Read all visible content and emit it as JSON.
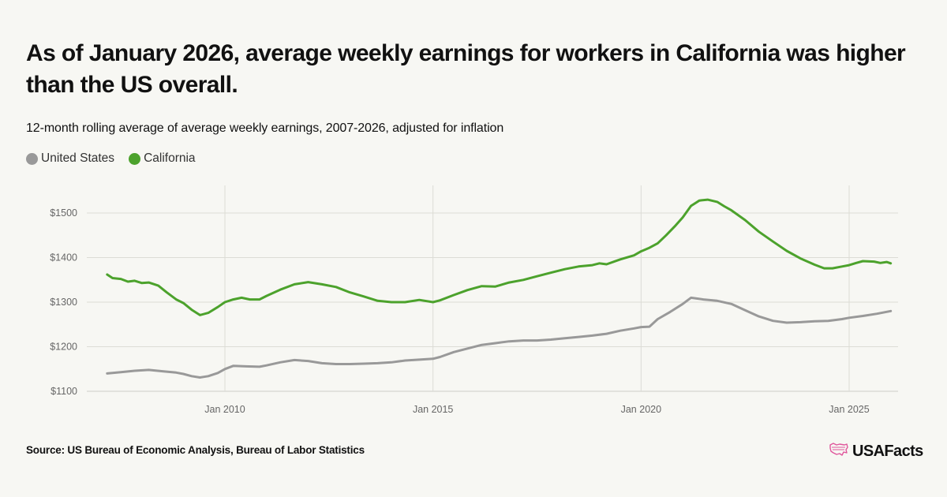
{
  "header": {
    "title": "As of January 2026, average weekly earnings for workers in California was higher than the US overall.",
    "subtitle": "12-month rolling average of average weekly earnings, 2007-2026, adjusted for inflation"
  },
  "footer": {
    "source": "Source: US Bureau of Economic Analysis, Bureau of Labor Statistics",
    "brand": "USAFacts",
    "brand_icon": "us-map-icon",
    "brand_color": "#e0559b"
  },
  "chart_data": {
    "type": "line",
    "title": "12-month rolling average of average weekly earnings, 2007-2026, adjusted for inflation",
    "xlabel": "",
    "ylabel": "",
    "xlim": [
      2006.6,
      2026.3
    ],
    "ylim": [
      1100,
      1560
    ],
    "grid": true,
    "legend_position": "top-left",
    "y_ticks": [
      {
        "value": 1100,
        "label": "$1100"
      },
      {
        "value": 1200,
        "label": "$1200"
      },
      {
        "value": 1300,
        "label": "$1300"
      },
      {
        "value": 1400,
        "label": "$1400"
      },
      {
        "value": 1500,
        "label": "$1500"
      }
    ],
    "x_ticks": [
      {
        "value": 2010,
        "label": "Jan 2010"
      },
      {
        "value": 2015,
        "label": "Jan 2015"
      },
      {
        "value": 2020,
        "label": "Jan 2020"
      },
      {
        "value": 2025,
        "label": "Jan 2025"
      }
    ],
    "series": [
      {
        "name": "United States",
        "color": "#999999",
        "points": [
          [
            2007.17,
            1140
          ],
          [
            2007.5,
            1143
          ],
          [
            2007.83,
            1146
          ],
          [
            2008.17,
            1148
          ],
          [
            2008.5,
            1145
          ],
          [
            2008.83,
            1142
          ],
          [
            2009.0,
            1139
          ],
          [
            2009.2,
            1134
          ],
          [
            2009.4,
            1131
          ],
          [
            2009.6,
            1134
          ],
          [
            2009.83,
            1141
          ],
          [
            2010.0,
            1150
          ],
          [
            2010.2,
            1157
          ],
          [
            2010.5,
            1156
          ],
          [
            2010.83,
            1155
          ],
          [
            2011.0,
            1158
          ],
          [
            2011.33,
            1165
          ],
          [
            2011.67,
            1170
          ],
          [
            2012.0,
            1168
          ],
          [
            2012.33,
            1163
          ],
          [
            2012.67,
            1161
          ],
          [
            2013.0,
            1161
          ],
          [
            2013.33,
            1162
          ],
          [
            2013.67,
            1163
          ],
          [
            2014.0,
            1165
          ],
          [
            2014.33,
            1169
          ],
          [
            2014.67,
            1171
          ],
          [
            2015.0,
            1173
          ],
          [
            2015.17,
            1177
          ],
          [
            2015.5,
            1188
          ],
          [
            2015.83,
            1196
          ],
          [
            2016.17,
            1204
          ],
          [
            2016.5,
            1208
          ],
          [
            2016.83,
            1212
          ],
          [
            2017.17,
            1214
          ],
          [
            2017.5,
            1214
          ],
          [
            2017.83,
            1216
          ],
          [
            2018.17,
            1219
          ],
          [
            2018.5,
            1222
          ],
          [
            2018.83,
            1225
          ],
          [
            2019.17,
            1229
          ],
          [
            2019.5,
            1236
          ],
          [
            2019.83,
            1241
          ],
          [
            2020.0,
            1244
          ],
          [
            2020.2,
            1245
          ],
          [
            2020.4,
            1262
          ],
          [
            2020.7,
            1278
          ],
          [
            2021.0,
            1296
          ],
          [
            2021.2,
            1310
          ],
          [
            2021.5,
            1306
          ],
          [
            2021.83,
            1303
          ],
          [
            2022.17,
            1296
          ],
          [
            2022.5,
            1282
          ],
          [
            2022.83,
            1268
          ],
          [
            2023.17,
            1258
          ],
          [
            2023.5,
            1254
          ],
          [
            2023.83,
            1255
          ],
          [
            2024.17,
            1257
          ],
          [
            2024.5,
            1258
          ],
          [
            2024.83,
            1262
          ],
          [
            2025.0,
            1265
          ],
          [
            2025.33,
            1269
          ],
          [
            2025.67,
            1274
          ],
          [
            2026.0,
            1280
          ]
        ]
      },
      {
        "name": "California",
        "color": "#4ca22c",
        "points": [
          [
            2007.17,
            1362
          ],
          [
            2007.3,
            1354
          ],
          [
            2007.5,
            1352
          ],
          [
            2007.67,
            1346
          ],
          [
            2007.83,
            1348
          ],
          [
            2008.0,
            1343
          ],
          [
            2008.17,
            1344
          ],
          [
            2008.4,
            1337
          ],
          [
            2008.6,
            1322
          ],
          [
            2008.83,
            1306
          ],
          [
            2009.0,
            1298
          ],
          [
            2009.2,
            1283
          ],
          [
            2009.4,
            1271
          ],
          [
            2009.6,
            1276
          ],
          [
            2009.83,
            1289
          ],
          [
            2010.0,
            1300
          ],
          [
            2010.2,
            1306
          ],
          [
            2010.4,
            1310
          ],
          [
            2010.6,
            1306
          ],
          [
            2010.83,
            1306
          ],
          [
            2011.0,
            1314
          ],
          [
            2011.33,
            1328
          ],
          [
            2011.67,
            1340
          ],
          [
            2012.0,
            1345
          ],
          [
            2012.33,
            1340
          ],
          [
            2012.67,
            1334
          ],
          [
            2013.0,
            1322
          ],
          [
            2013.33,
            1313
          ],
          [
            2013.67,
            1303
          ],
          [
            2014.0,
            1300
          ],
          [
            2014.33,
            1300
          ],
          [
            2014.67,
            1305
          ],
          [
            2015.0,
            1300
          ],
          [
            2015.17,
            1304
          ],
          [
            2015.5,
            1316
          ],
          [
            2015.83,
            1327
          ],
          [
            2016.17,
            1336
          ],
          [
            2016.5,
            1335
          ],
          [
            2016.83,
            1344
          ],
          [
            2017.17,
            1350
          ],
          [
            2017.5,
            1358
          ],
          [
            2017.83,
            1366
          ],
          [
            2018.17,
            1374
          ],
          [
            2018.5,
            1380
          ],
          [
            2018.83,
            1383
          ],
          [
            2019.0,
            1387
          ],
          [
            2019.17,
            1385
          ],
          [
            2019.5,
            1396
          ],
          [
            2019.83,
            1405
          ],
          [
            2020.0,
            1414
          ],
          [
            2020.2,
            1422
          ],
          [
            2020.4,
            1432
          ],
          [
            2020.6,
            1450
          ],
          [
            2020.83,
            1472
          ],
          [
            2021.0,
            1490
          ],
          [
            2021.2,
            1516
          ],
          [
            2021.4,
            1528
          ],
          [
            2021.6,
            1530
          ],
          [
            2021.83,
            1525
          ],
          [
            2022.0,
            1515
          ],
          [
            2022.17,
            1506
          ],
          [
            2022.5,
            1484
          ],
          [
            2022.83,
            1458
          ],
          [
            2023.17,
            1436
          ],
          [
            2023.5,
            1415
          ],
          [
            2023.83,
            1398
          ],
          [
            2024.17,
            1384
          ],
          [
            2024.4,
            1376
          ],
          [
            2024.6,
            1376
          ],
          [
            2024.83,
            1380
          ],
          [
            2025.0,
            1383
          ],
          [
            2025.17,
            1388
          ],
          [
            2025.33,
            1392
          ],
          [
            2025.6,
            1391
          ],
          [
            2025.75,
            1388
          ],
          [
            2025.9,
            1390
          ],
          [
            2026.0,
            1387
          ]
        ]
      }
    ]
  }
}
